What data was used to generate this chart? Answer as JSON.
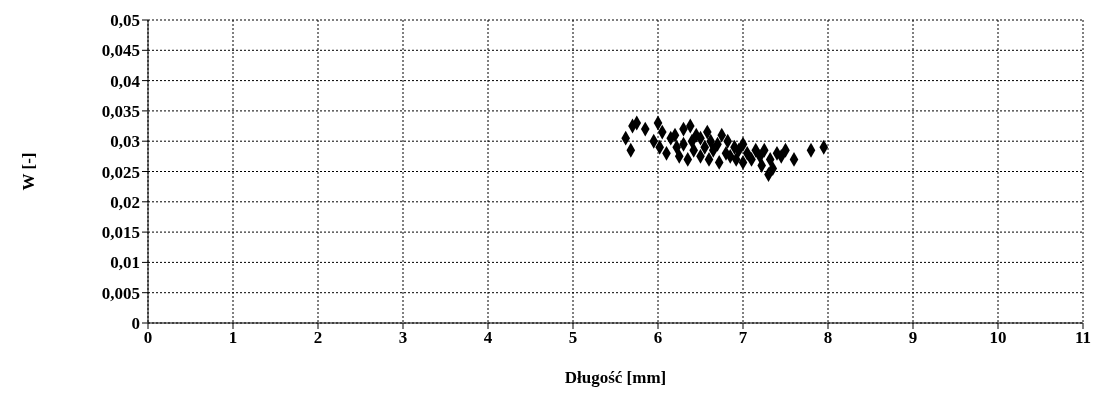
{
  "chart_data": {
    "type": "scatter",
    "xlabel": "Długość [mm]",
    "ylabel": "W [-]",
    "marker": "diamond",
    "grid": true,
    "xlim": [
      0,
      11
    ],
    "xticks": [
      0,
      1,
      2,
      3,
      4,
      5,
      6,
      7,
      8,
      9,
      10,
      11
    ],
    "ylim": [
      0,
      0.05
    ],
    "yticks": [
      {
        "value": 0,
        "label": "0"
      },
      {
        "value": 0.005,
        "label": "0,005"
      },
      {
        "value": 0.01,
        "label": "0,01"
      },
      {
        "value": 0.015,
        "label": "0,015"
      },
      {
        "value": 0.02,
        "label": "0,02"
      },
      {
        "value": 0.025,
        "label": "0,025"
      },
      {
        "value": 0.03,
        "label": "0,03"
      },
      {
        "value": 0.035,
        "label": "0,035"
      },
      {
        "value": 0.04,
        "label": "0,04"
      },
      {
        "value": 0.045,
        "label": "0,045"
      },
      {
        "value": 0.05,
        "label": "0,05"
      }
    ],
    "series": [
      {
        "color": "#000000",
        "x": [
          5.62,
          5.68,
          5.7,
          5.75,
          5.85,
          5.95,
          6.0,
          6.02,
          6.05,
          6.1,
          6.15,
          6.2,
          6.22,
          6.25,
          6.3,
          6.3,
          6.35,
          6.38,
          6.4,
          6.42,
          6.45,
          6.5,
          6.5,
          6.55,
          6.58,
          6.6,
          6.62,
          6.65,
          6.7,
          6.72,
          6.75,
          6.8,
          6.82,
          6.85,
          6.9,
          6.92,
          6.95,
          7.0,
          7.0,
          7.05,
          7.1,
          7.15,
          7.2,
          7.22,
          7.25,
          7.3,
          7.32,
          7.35,
          7.4,
          7.45,
          7.5,
          7.6,
          7.8,
          7.95
        ],
        "values": [
          0.0305,
          0.0285,
          0.0325,
          0.033,
          0.032,
          0.03,
          0.033,
          0.029,
          0.0315,
          0.028,
          0.0305,
          0.031,
          0.029,
          0.0275,
          0.032,
          0.0295,
          0.027,
          0.0325,
          0.03,
          0.0285,
          0.031,
          0.0275,
          0.0305,
          0.029,
          0.0315,
          0.027,
          0.03,
          0.0285,
          0.0295,
          0.0265,
          0.031,
          0.028,
          0.03,
          0.0275,
          0.029,
          0.027,
          0.0285,
          0.0265,
          0.0295,
          0.028,
          0.027,
          0.0285,
          0.0275,
          0.026,
          0.0285,
          0.0245,
          0.027,
          0.0255,
          0.028,
          0.0275,
          0.0285,
          0.027,
          0.0285,
          0.029
        ]
      }
    ]
  }
}
